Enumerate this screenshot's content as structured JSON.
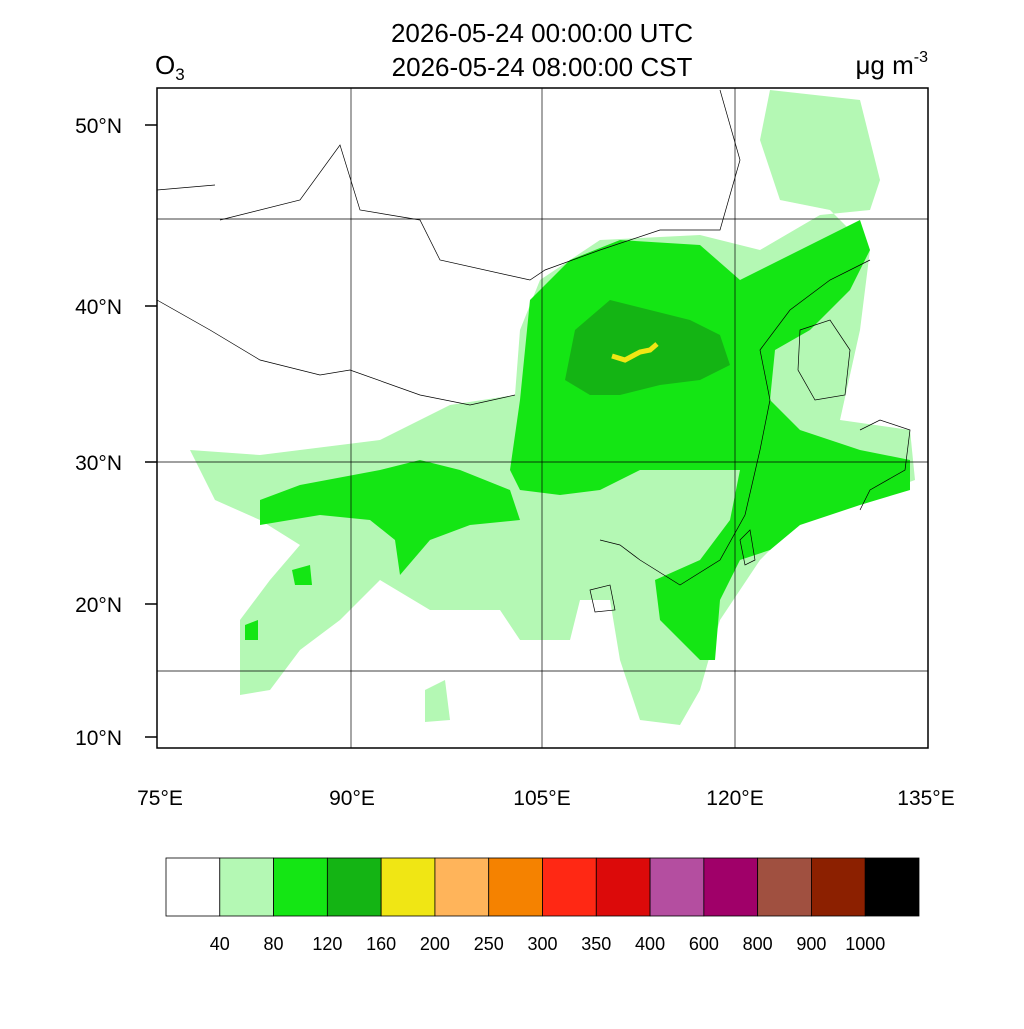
{
  "title": [
    "2026-05-24 00:00:00 UTC",
    "2026-05-24 08:00:00 CST"
  ],
  "variable": {
    "base": "O",
    "sub": "3"
  },
  "units": {
    "base": "μg m",
    "sup": "-3"
  },
  "lon_labels": [
    "75°E",
    "90°E",
    "105°E",
    "120°E",
    "135°E"
  ],
  "lat_labels": [
    "50°N",
    "40°N",
    "30°N",
    "20°N",
    "10°N"
  ],
  "colorbar": {
    "colors": [
      "#ffffff",
      "#b4f8b4",
      "#14e614",
      "#14b414",
      "#f0e614",
      "#ffb45a",
      "#f58200",
      "#ff2814",
      "#dc0a0a",
      "#b44ea0",
      "#a00069",
      "#a05040",
      "#8c2000",
      "#000000"
    ],
    "labels": [
      40,
      80,
      120,
      160,
      200,
      250,
      300,
      350,
      400,
      600,
      800,
      900,
      1000
    ]
  }
}
